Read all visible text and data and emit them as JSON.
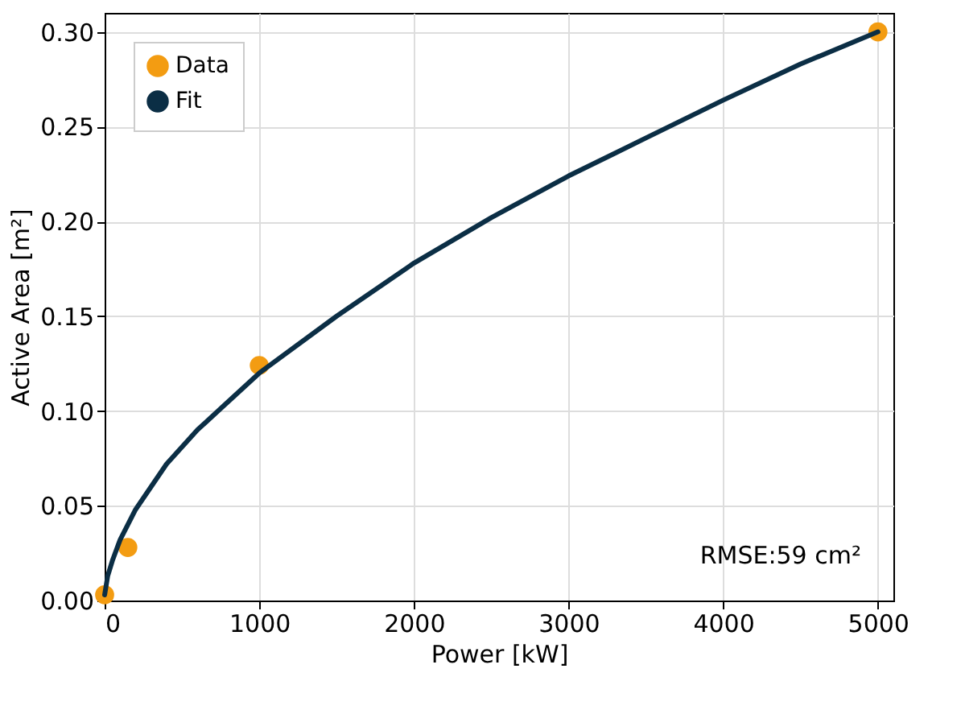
{
  "chart_data": {
    "type": "scatter",
    "xlabel": "Power [kW]",
    "ylabel": "Active Area [m²]",
    "series": [
      {
        "name": "Data",
        "marker": "circle",
        "color": "#f39c12",
        "x": [
          0,
          150,
          1000,
          5000
        ],
        "values": [
          0.003,
          0.028,
          0.124,
          0.3
        ]
      },
      {
        "name": "Fit",
        "type": "line",
        "marker": "none",
        "color": "#0b2e45",
        "x": [
          0,
          20,
          50,
          100,
          200,
          400,
          600,
          800,
          1000,
          1500,
          2000,
          2500,
          3000,
          3500,
          4000,
          4500,
          5000
        ],
        "values": [
          0.003,
          0.013,
          0.021,
          0.032,
          0.048,
          0.072,
          0.09,
          0.105,
          0.12,
          0.15,
          0.178,
          0.202,
          0.224,
          0.244,
          0.264,
          0.283,
          0.3
        ]
      }
    ],
    "xlim": [
      0,
      5100
    ],
    "xticks": [
      0,
      1000,
      2000,
      3000,
      4000,
      5000
    ],
    "ylim": [
      0,
      0.31
    ],
    "yticks": [
      {
        "value": 0,
        "label": "0.00"
      },
      {
        "value": 0.05,
        "label": "0.05"
      },
      {
        "value": 0.1,
        "label": "0.10"
      },
      {
        "value": 0.15,
        "label": "0.15"
      },
      {
        "value": 0.2,
        "label": "0.20"
      },
      {
        "value": 0.25,
        "label": "0.25"
      },
      {
        "value": 0.3,
        "label": "0.30"
      }
    ],
    "grid": true,
    "legend": "top left",
    "line_style": "solid",
    "annotations": [
      "RMSE:59 cm²"
    ]
  }
}
